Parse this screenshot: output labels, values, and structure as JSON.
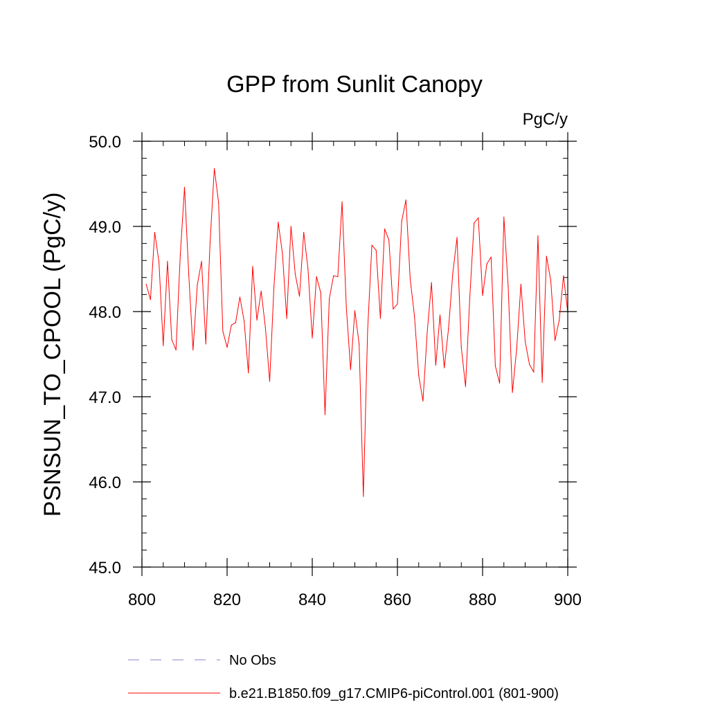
{
  "chart_data": {
    "type": "line",
    "title": "GPP from Sunlit Canopy",
    "units_label": "PgC/y",
    "xlabel": "",
    "ylabel": "PSNSUN_TO_CPOOL  (PgC/y)",
    "xlim": [
      800,
      900
    ],
    "ylim": [
      45.0,
      50.0
    ],
    "x_ticks": [
      800,
      820,
      840,
      860,
      880,
      900
    ],
    "y_ticks": [
      45.0,
      46.0,
      47.0,
      48.0,
      49.0,
      50.0
    ],
    "x_tick_labels": [
      "800",
      "820",
      "840",
      "860",
      "880",
      "900"
    ],
    "y_tick_labels": [
      "45.0",
      "46.0",
      "47.0",
      "48.0",
      "49.0",
      "50.0"
    ],
    "legend": [
      {
        "label": "No Obs",
        "color": "#8a82c8",
        "style": "dashed"
      },
      {
        "label": "b.e21.B1850.f09_g17.CMIP6-piControl.001 (801-900)",
        "color": "#ff0000",
        "style": "solid"
      }
    ],
    "series": [
      {
        "name": "b.e21.B1850.f09_g17.CMIP6-piControl.001 (801-900)",
        "color": "#ff0000",
        "x": [
          801,
          802,
          803,
          804,
          805,
          806,
          807,
          808,
          809,
          810,
          811,
          812,
          813,
          814,
          815,
          816,
          817,
          818,
          819,
          820,
          821,
          822,
          823,
          824,
          825,
          826,
          827,
          828,
          829,
          830,
          831,
          832,
          833,
          834,
          835,
          836,
          837,
          838,
          839,
          840,
          841,
          842,
          843,
          844,
          845,
          846,
          847,
          848,
          849,
          850,
          851,
          852,
          853,
          854,
          855,
          856,
          857,
          858,
          859,
          860,
          861,
          862,
          863,
          864,
          865,
          866,
          867,
          868,
          869,
          870,
          871,
          872,
          873,
          874,
          875,
          876,
          877,
          878,
          879,
          880,
          881,
          882,
          883,
          884,
          885,
          886,
          887,
          888,
          889,
          890,
          891,
          892,
          893,
          894,
          895,
          896,
          897,
          898,
          899,
          900
        ],
        "values": [
          48.32,
          48.14,
          48.93,
          48.58,
          47.6,
          48.59,
          47.67,
          47.55,
          48.66,
          49.46,
          48.43,
          47.55,
          48.31,
          48.59,
          47.62,
          48.81,
          49.68,
          49.28,
          47.77,
          47.58,
          47.84,
          47.87,
          48.17,
          47.89,
          47.28,
          48.53,
          47.9,
          48.24,
          47.81,
          47.18,
          48.29,
          49.05,
          48.68,
          47.92,
          49.0,
          48.44,
          48.18,
          48.93,
          48.5,
          47.69,
          48.41,
          48.22,
          46.79,
          48.15,
          48.42,
          48.41,
          49.29,
          48.05,
          47.32,
          48.01,
          47.62,
          45.83,
          47.78,
          48.78,
          48.72,
          47.92,
          48.97,
          48.84,
          48.03,
          48.09,
          49.06,
          49.31,
          48.38,
          47.95,
          47.25,
          46.95,
          47.76,
          48.34,
          47.37,
          47.96,
          47.34,
          47.8,
          48.45,
          48.87,
          47.58,
          47.12,
          48.17,
          49.04,
          49.1,
          48.19,
          48.56,
          48.64,
          47.36,
          47.16,
          49.11,
          48.3,
          47.05,
          47.56,
          48.32,
          47.65,
          47.38,
          47.29,
          48.89,
          47.17,
          48.65,
          48.37,
          47.66,
          47.9,
          48.42,
          47.99
        ]
      }
    ]
  }
}
